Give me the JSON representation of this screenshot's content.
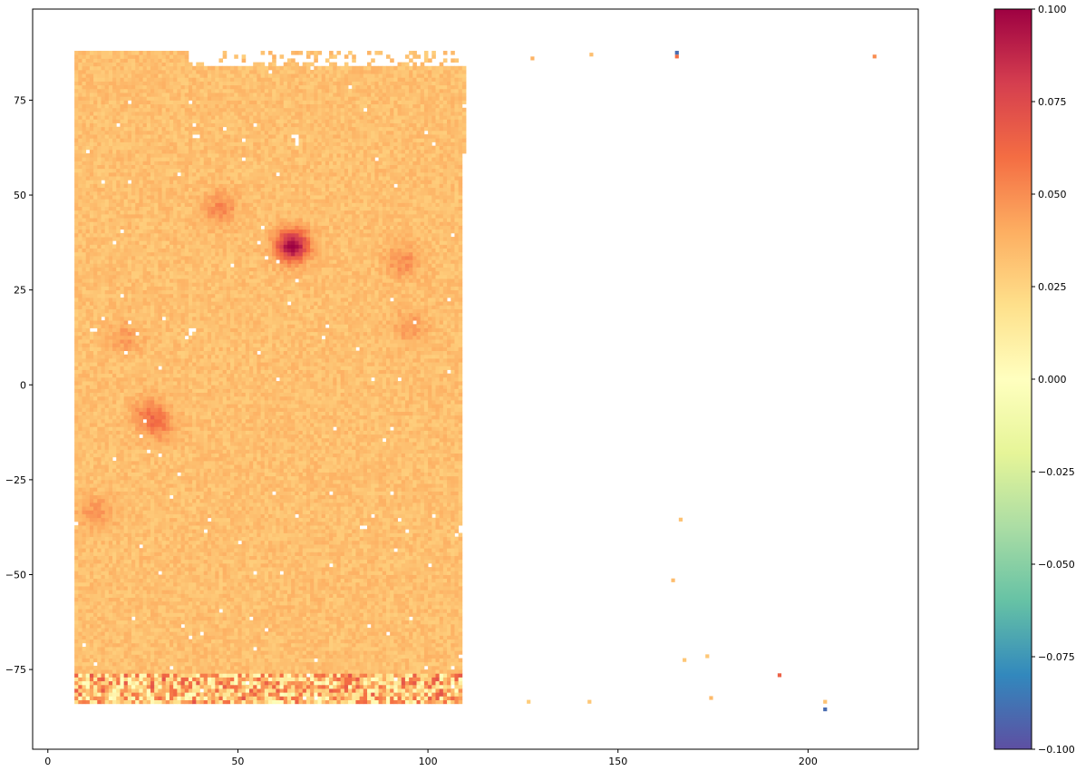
{
  "chart_data": {
    "type": "heatmap",
    "title": "",
    "xlabel": "",
    "ylabel": "",
    "xlim": [
      -4,
      229
    ],
    "ylim": [
      -96,
      99
    ],
    "x_ticks": [
      0,
      50,
      100,
      150,
      200
    ],
    "y_ticks": [
      75,
      50,
      25,
      0,
      -25,
      -50,
      -75
    ],
    "grid": false,
    "colormap": "Spectral_r",
    "colorbar": {
      "range": [
        -0.1,
        0.1
      ],
      "ticks": [
        "0.100",
        "0.075",
        "0.050",
        "0.025",
        "0.000",
        "−0.025",
        "−0.050",
        "−0.075",
        "−0.100"
      ],
      "tick_values": [
        0.1,
        0.075,
        0.05,
        0.025,
        0.0,
        -0.025,
        -0.05,
        -0.075,
        -0.1
      ],
      "placement": "right"
    },
    "field": {
      "x_range": [
        7,
        110
      ],
      "y_range": [
        -84,
        88
      ],
      "base_value": 0.033
    },
    "hotspots": [
      {
        "x": 63.8,
        "y": 36.2,
        "value": 0.1
      },
      {
        "x": 45,
        "y": 46,
        "value": 0.052
      },
      {
        "x": 93,
        "y": 32,
        "value": 0.05
      },
      {
        "x": 26,
        "y": -8,
        "value": 0.052
      },
      {
        "x": 29,
        "y": -11,
        "value": 0.05
      },
      {
        "x": 12,
        "y": -34,
        "value": 0.048
      },
      {
        "x": 95,
        "y": 15,
        "value": 0.046
      },
      {
        "x": 20,
        "y": 12,
        "value": 0.045
      }
    ],
    "outliers": [
      {
        "x": 127.5,
        "y": 86,
        "value": 0.038
      },
      {
        "x": 143,
        "y": 87,
        "value": 0.033
      },
      {
        "x": 165.5,
        "y": 86.5,
        "value": 0.06
      },
      {
        "x": 165.5,
        "y": 87.5,
        "value": -0.09
      },
      {
        "x": 217.5,
        "y": 86.5,
        "value": 0.05
      },
      {
        "x": 166.5,
        "y": -35.5,
        "value": 0.032
      },
      {
        "x": 164.5,
        "y": -51.5,
        "value": 0.034
      },
      {
        "x": 173.5,
        "y": -71.5,
        "value": 0.03
      },
      {
        "x": 167.5,
        "y": -72.5,
        "value": 0.03
      },
      {
        "x": 192.5,
        "y": -76.5,
        "value": 0.065
      },
      {
        "x": 174.5,
        "y": -82.5,
        "value": 0.035
      },
      {
        "x": 126.5,
        "y": -83.5,
        "value": 0.028
      },
      {
        "x": 142.5,
        "y": -83.5,
        "value": 0.03
      },
      {
        "x": 204.5,
        "y": -83.5,
        "value": 0.032
      },
      {
        "x": 204.5,
        "y": -85.5,
        "value": -0.09
      }
    ]
  }
}
